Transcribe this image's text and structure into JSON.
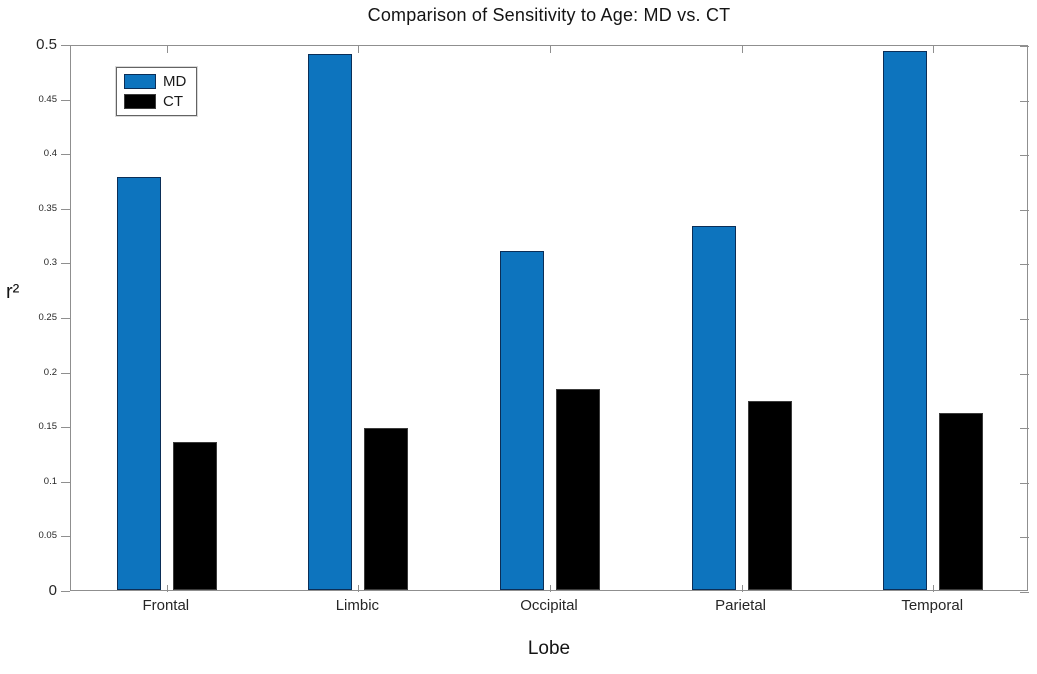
{
  "figure": {
    "background": "#ffffff"
  },
  "chart_data": {
    "type": "bar",
    "title": "Comparison of Sensitivity to Age: MD vs. CT",
    "xlabel": "Lobe",
    "ylabel": "r²",
    "categories": [
      "Frontal",
      "Limbic",
      "Occipital",
      "Parietal",
      "Temporal"
    ],
    "series": [
      {
        "name": "MD",
        "color": "#0d74be",
        "edge_color": "#0b2e57",
        "values": [
          0.378,
          0.491,
          0.31,
          0.333,
          0.494
        ]
      },
      {
        "name": "CT",
        "color": "#000000",
        "edge_color": "#3c3c3c",
        "values": [
          0.136,
          0.148,
          0.184,
          0.173,
          0.162
        ]
      }
    ],
    "ylim": [
      0,
      0.5
    ],
    "yticks": [
      0,
      0.05,
      0.1,
      0.15,
      0.2,
      0.25,
      0.3,
      0.35,
      0.4,
      0.45,
      0.5
    ],
    "ytick_labels": [
      "0",
      "0.05",
      "0.1",
      "0.15",
      "0.2",
      "0.25",
      "0.3",
      "0.35",
      "0.4",
      "0.45",
      "0.5"
    ],
    "grid": false,
    "legend": {
      "position": "top-left-inside",
      "entries": [
        "MD",
        "CT"
      ]
    },
    "axis_color": "#8f8f8f"
  }
}
